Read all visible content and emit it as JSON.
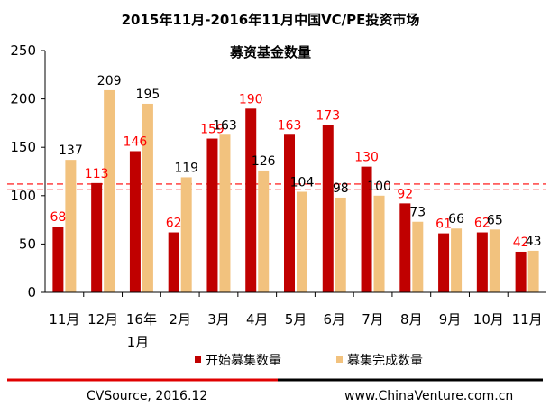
{
  "chart_data": {
    "type": "bar",
    "title": "2015年11月-2016年11月中国VC/PE投资市场",
    "subtitle": "募资基金数量",
    "categories": [
      "11月",
      "12月",
      "16年\n1月",
      "2月",
      "3月",
      "4月",
      "5月",
      "6月",
      "7月",
      "8月",
      "9月",
      "10月",
      "11月"
    ],
    "series": [
      {
        "name": "开始募集数量",
        "color": "#c00000",
        "label_color": "#ff0000",
        "values": [
          68,
          113,
          146,
          62,
          159,
          190,
          163,
          173,
          130,
          92,
          61,
          62,
          42
        ]
      },
      {
        "name": "募集完成数量",
        "color": "#f2c27e",
        "label_color": "#000000",
        "values": [
          137,
          209,
          195,
          119,
          163,
          126,
          104,
          98,
          100,
          73,
          66,
          65,
          43
        ]
      }
    ],
    "yticks": [
      "0",
      "50",
      "100",
      "150",
      "200",
      "250"
    ],
    "ylim": [
      0,
      250
    ],
    "reference_lines": [
      112,
      106
    ],
    "reference_color": "#ff0000",
    "legend_position": "bottom",
    "grid": false
  },
  "footer": {
    "source": "CVSource, 2016.12",
    "site": "www.ChinaVenture.com.cn"
  }
}
